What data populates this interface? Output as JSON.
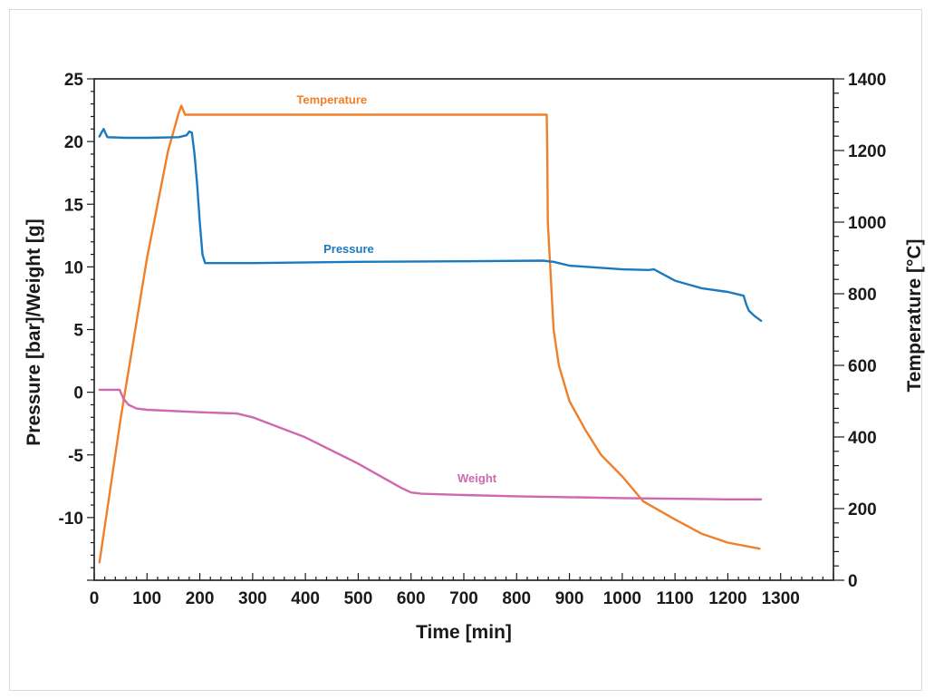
{
  "chart_data": {
    "type": "line",
    "title": "",
    "xlabel": "Time [min]",
    "ylabel_left": "Pressure [bar]/Weight [g]",
    "ylabel_right": "Temperature [°C]",
    "xlim": [
      0,
      1400
    ],
    "ylim_left": [
      -15,
      25
    ],
    "ylim_right": [
      0,
      1400
    ],
    "x_ticks": [
      "0",
      "100",
      "200",
      "300",
      "400",
      "500",
      "600",
      "700",
      "800",
      "900",
      "1000",
      "1100",
      "1200",
      "1300"
    ],
    "x_tick_values": [
      0,
      100,
      200,
      300,
      400,
      500,
      600,
      700,
      800,
      900,
      1000,
      1100,
      1200,
      1300
    ],
    "y_left_ticks": [
      "25",
      "20",
      "15",
      "10",
      "5",
      "0",
      "-5",
      "-10"
    ],
    "y_left_tick_values": [
      25,
      20,
      15,
      10,
      5,
      0,
      -5,
      -10
    ],
    "y_right_ticks": [
      "1400",
      "1200",
      "1000",
      "800",
      "600",
      "400",
      "200",
      "0"
    ],
    "y_right_tick_values": [
      1400,
      1200,
      1000,
      800,
      600,
      400,
      200,
      0
    ],
    "grid": false,
    "legend": "inline labels",
    "series": [
      {
        "name": "Temperature",
        "axis": "right",
        "color": "#f07f2a",
        "label_at": [
          450,
          1330
        ],
        "points": [
          [
            10,
            50
          ],
          [
            50,
            450
          ],
          [
            100,
            900
          ],
          [
            140,
            1200
          ],
          [
            160,
            1305
          ],
          [
            165,
            1325
          ],
          [
            172,
            1300
          ],
          [
            300,
            1300
          ],
          [
            500,
            1300
          ],
          [
            700,
            1300
          ],
          [
            857,
            1300
          ],
          [
            858,
            1200
          ],
          [
            859,
            1000
          ],
          [
            870,
            700
          ],
          [
            880,
            600
          ],
          [
            900,
            500
          ],
          [
            930,
            420
          ],
          [
            960,
            350
          ],
          [
            1000,
            290
          ],
          [
            1040,
            220
          ],
          [
            1100,
            170
          ],
          [
            1150,
            130
          ],
          [
            1200,
            105
          ],
          [
            1260,
            88
          ]
        ]
      },
      {
        "name": "Pressure",
        "axis": "left",
        "color": "#1a7abf",
        "label_at": [
          482,
          11.1
        ],
        "points": [
          [
            10,
            20.4
          ],
          [
            15,
            20.8
          ],
          [
            18,
            21.0
          ],
          [
            21,
            20.7
          ],
          [
            25,
            20.35
          ],
          [
            60,
            20.3
          ],
          [
            100,
            20.3
          ],
          [
            160,
            20.35
          ],
          [
            175,
            20.5
          ],
          [
            180,
            20.8
          ],
          [
            185,
            20.7
          ],
          [
            190,
            19.0
          ],
          [
            195,
            16.5
          ],
          [
            200,
            13.5
          ],
          [
            205,
            11.0
          ],
          [
            210,
            10.3
          ],
          [
            300,
            10.3
          ],
          [
            500,
            10.4
          ],
          [
            700,
            10.45
          ],
          [
            850,
            10.5
          ],
          [
            870,
            10.4
          ],
          [
            900,
            10.1
          ],
          [
            1000,
            9.8
          ],
          [
            1050,
            9.75
          ],
          [
            1060,
            9.8
          ],
          [
            1100,
            8.9
          ],
          [
            1150,
            8.3
          ],
          [
            1200,
            8.0
          ],
          [
            1230,
            7.7
          ],
          [
            1235,
            7.0
          ],
          [
            1240,
            6.5
          ],
          [
            1250,
            6.1
          ],
          [
            1263,
            5.7
          ]
        ]
      },
      {
        "name": "Weight",
        "axis": "left",
        "color": "#d068ae",
        "label_at": [
          725,
          -7.2
        ],
        "points": [
          [
            10,
            0.2
          ],
          [
            48,
            0.2
          ],
          [
            55,
            -0.5
          ],
          [
            65,
            -1.0
          ],
          [
            80,
            -1.3
          ],
          [
            100,
            -1.4
          ],
          [
            200,
            -1.6
          ],
          [
            270,
            -1.7
          ],
          [
            300,
            -2.0
          ],
          [
            400,
            -3.6
          ],
          [
            500,
            -5.7
          ],
          [
            580,
            -7.6
          ],
          [
            600,
            -8.0
          ],
          [
            620,
            -8.1
          ],
          [
            700,
            -8.2
          ],
          [
            800,
            -8.3
          ],
          [
            1000,
            -8.45
          ],
          [
            1200,
            -8.55
          ],
          [
            1263,
            -8.55
          ]
        ]
      }
    ]
  }
}
